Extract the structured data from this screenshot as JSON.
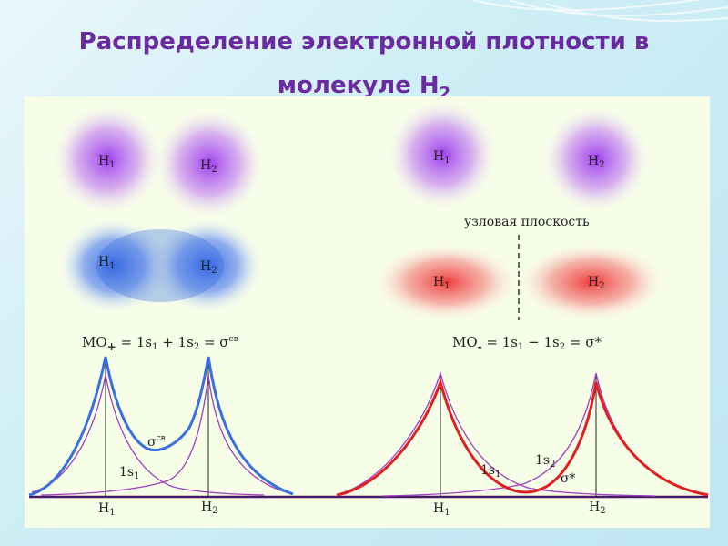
{
  "title": {
    "line1": "Распределение электронной плотности в",
    "line2_prefix": "молекуле H",
    "line2_sub": "2"
  },
  "atoms": {
    "h1": "H",
    "h1_sub": "1",
    "h2": "H",
    "h2_sub": "2"
  },
  "bonding": {
    "formula_prefix": "MO",
    "formula_sign": "+",
    "formula_rest": " =  1s",
    "plus": " + 1s",
    "eq2": "  = σ",
    "sup": "св",
    "sigma_label": "σ",
    "sigma_sup": "св",
    "ao_label": "1s",
    "ao_sub": "1"
  },
  "antibonding": {
    "nodal_plane": "узловая плоскость",
    "formula_prefix": "MO",
    "formula_sign": "-",
    "formula_rest": " = 1s",
    "minus": " − 1s",
    "eq2": " = σ*",
    "ao1_label": "1s",
    "ao1_sub": "1",
    "ao2_label": "1s",
    "ao2_sub": "2",
    "sigma_star": "σ*"
  },
  "colors": {
    "title": "#6a2aa0",
    "bonding": "#3a6fe0",
    "antibonding": "#e02020",
    "ao": "#a040c0",
    "axis": "#4a1a6a"
  }
}
